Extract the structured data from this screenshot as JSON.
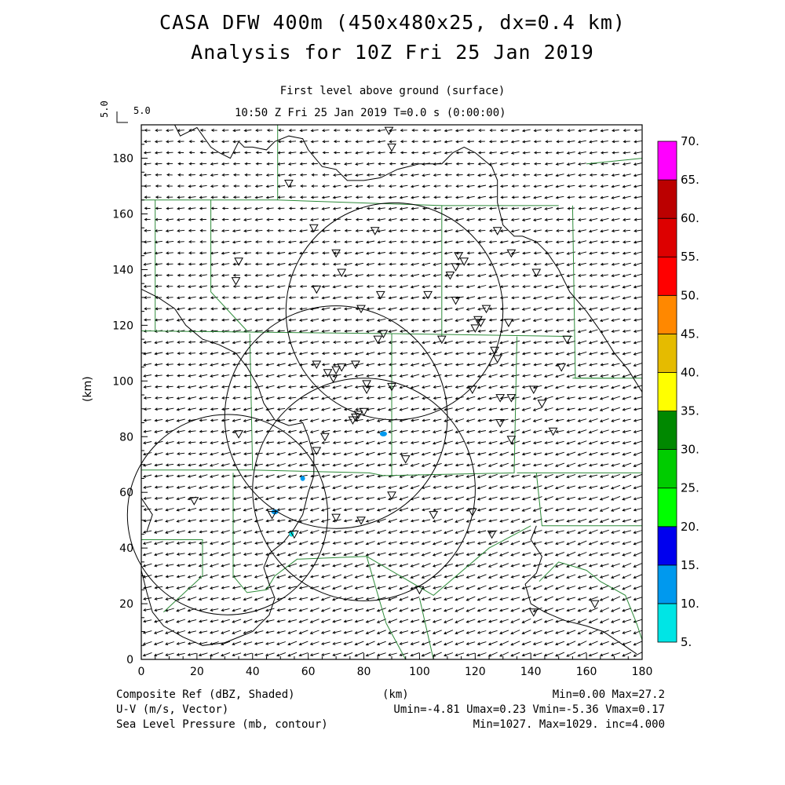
{
  "title": {
    "line1": "CASA DFW 400m (450x480x25, dx=0.4 km)",
    "line2": "Analysis for 10Z Fri 25 Jan 2019"
  },
  "subtitle": {
    "level": "First level above ground (surface)",
    "time": "10:50 Z Fri 25 Jan 2019    T=0.0 s (0:00:00)"
  },
  "vector_key": {
    "label": "5.0",
    "rot_label": "5.0"
  },
  "axes": {
    "xlabel": "(km)",
    "ylabel": "(km)",
    "xticks": [
      "0",
      "20",
      "40",
      "60",
      "80",
      "100",
      "120",
      "140",
      "160",
      "180"
    ],
    "yticks": [
      "0",
      "20",
      "40",
      "60",
      "80",
      "100",
      "120",
      "140",
      "160",
      "180"
    ]
  },
  "colorbar": {
    "labels": [
      "5.",
      "10.",
      "15.",
      "20.",
      "25.",
      "30.",
      "35.",
      "40.",
      "45.",
      "50.",
      "55.",
      "60.",
      "65.",
      "70."
    ],
    "colors": [
      "#00e5e5",
      "#0099ee",
      "#0000ee",
      "#00ff00",
      "#00cc00",
      "#008800",
      "#ffff00",
      "#e5bb00",
      "#ff8800",
      "#ff0000",
      "#dd0000",
      "#bb0000",
      "#ff00ff"
    ]
  },
  "footer": {
    "left1": "Composite Ref (dBZ, Shaded)",
    "left2": "U-V (m/s, Vector)",
    "left3": "Sea Level Pressure (mb, contour)",
    "center": "(km)",
    "right1": "Min=0.00 Max=27.2",
    "right2": "Umin=-4.81 Umax=0.23 Vmin=-5.36 Vmax=0.17",
    "right3": "Min=1027. Max=1029. inc=4.000"
  },
  "chart_data": {
    "type": "scatter",
    "xlim": [
      0,
      180
    ],
    "ylim": [
      0,
      192
    ],
    "radar_circles": [
      {
        "center": [
          91,
          125
        ],
        "radius": 39
      },
      {
        "center": [
          70,
          87
        ],
        "radius": 40
      },
      {
        "center": [
          31,
          52
        ],
        "radius": 36
      },
      {
        "center": [
          80,
          61
        ],
        "radius": 40
      }
    ],
    "stations": [
      [
        89,
        190
      ],
      [
        90,
        184
      ],
      [
        53,
        171
      ],
      [
        62,
        155
      ],
      [
        84,
        154
      ],
      [
        35,
        143
      ],
      [
        70,
        146
      ],
      [
        72,
        139
      ],
      [
        34,
        136
      ],
      [
        63,
        133
      ],
      [
        79,
        126
      ],
      [
        86,
        131
      ],
      [
        103,
        131
      ],
      [
        113,
        141
      ],
      [
        114,
        145
      ],
      [
        116,
        143
      ],
      [
        128,
        154
      ],
      [
        133,
        146
      ],
      [
        142,
        139
      ],
      [
        111,
        138
      ],
      [
        113,
        129
      ],
      [
        124,
        126
      ],
      [
        122,
        121
      ],
      [
        121,
        122
      ],
      [
        120,
        119
      ],
      [
        132,
        121
      ],
      [
        127,
        111
      ],
      [
        128,
        108
      ],
      [
        108,
        115
      ],
      [
        87,
        117
      ],
      [
        85,
        115
      ],
      [
        63,
        106
      ],
      [
        67,
        103
      ],
      [
        69,
        101
      ],
      [
        70,
        104
      ],
      [
        72,
        105
      ],
      [
        77,
        106
      ],
      [
        81,
        97
      ],
      [
        81,
        99
      ],
      [
        90,
        98
      ],
      [
        119,
        97
      ],
      [
        129,
        94
      ],
      [
        133,
        94
      ],
      [
        141,
        97
      ],
      [
        144,
        92
      ],
      [
        151,
        105
      ],
      [
        148,
        82
      ],
      [
        129,
        85
      ],
      [
        133,
        79
      ],
      [
        77,
        87
      ],
      [
        78,
        88
      ],
      [
        80,
        89
      ],
      [
        76,
        86
      ],
      [
        66,
        80
      ],
      [
        63,
        75
      ],
      [
        35,
        81
      ],
      [
        19,
        57
      ],
      [
        47,
        52
      ],
      [
        55,
        45
      ],
      [
        70,
        51
      ],
      [
        79,
        50
      ],
      [
        90,
        59
      ],
      [
        95,
        72
      ],
      [
        105,
        52
      ],
      [
        119,
        53
      ],
      [
        126,
        45
      ],
      [
        100,
        25
      ],
      [
        141,
        17
      ],
      [
        163,
        20
      ],
      [
        153,
        115
      ]
    ],
    "reflectivity_points": [
      {
        "x": 87,
        "y": 81,
        "dbz": 12
      },
      {
        "x": 48,
        "y": 53,
        "dbz": 12
      },
      {
        "x": 58,
        "y": 65,
        "dbz": 10
      },
      {
        "x": 54,
        "y": 45,
        "dbz": 8
      }
    ],
    "wind_field": {
      "u_min": -4.81,
      "u_max": 0.23,
      "v_min": -5.36,
      "v_max": 0.17
    }
  }
}
